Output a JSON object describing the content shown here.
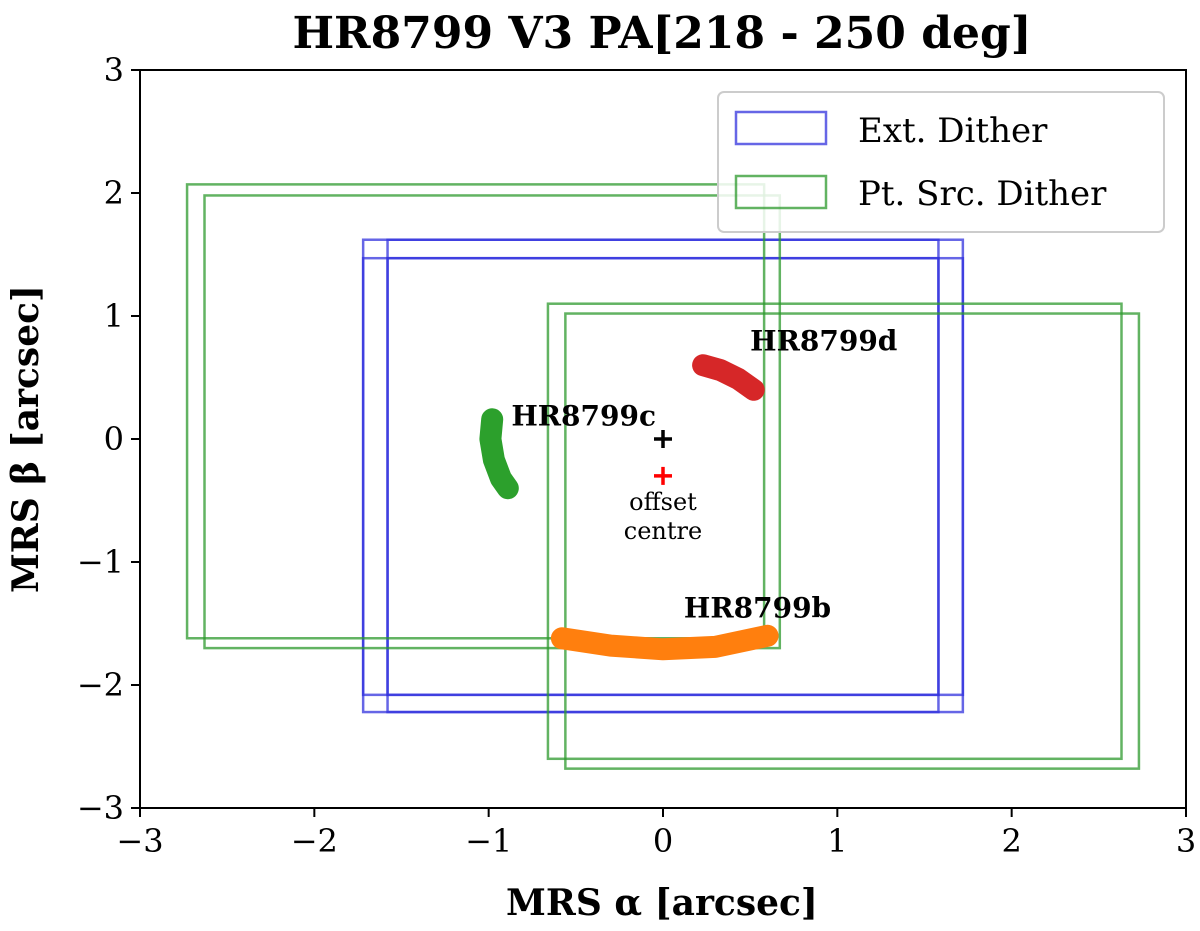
{
  "chart_data": {
    "type": "line",
    "title": "HR8799 V3 PA[218 - 250 deg]",
    "xlabel": "MRS α [arcsec]",
    "ylabel": "MRS β [arcsec]",
    "xlim": [
      -3,
      3
    ],
    "ylim": [
      -3,
      3
    ],
    "xticks": [
      -3,
      -2,
      -1,
      0,
      1,
      2,
      3
    ],
    "yticks": [
      -3,
      -2,
      -1,
      0,
      1,
      2,
      3
    ],
    "tick_labels_x": [
      "−3",
      "−2",
      "−1",
      "0",
      "1",
      "2",
      "3"
    ],
    "tick_labels_y": [
      "−3",
      "−2",
      "−1",
      "0",
      "1",
      "2",
      "3"
    ],
    "legend": {
      "position": "top-right",
      "entries": [
        {
          "label": "Ext. Dither",
          "color": "#3333dd"
        },
        {
          "label": "Pt. Src. Dither",
          "color": "#2e9a2e"
        }
      ]
    },
    "rectangles": [
      {
        "series": "Ext. Dither",
        "x0": -1.72,
        "x1": 1.58,
        "y0": -2.22,
        "y1": 1.47
      },
      {
        "series": "Ext. Dither",
        "x0": -1.72,
        "x1": 1.58,
        "y0": -2.08,
        "y1": 1.62
      },
      {
        "series": "Ext. Dither",
        "x0": -1.58,
        "x1": 1.72,
        "y0": -2.22,
        "y1": 1.47
      },
      {
        "series": "Ext. Dither",
        "x0": -1.58,
        "x1": 1.72,
        "y0": -2.08,
        "y1": 1.62
      },
      {
        "series": "Pt. Src. Dither",
        "x0": -2.73,
        "x1": 0.58,
        "y0": -1.62,
        "y1": 2.07
      },
      {
        "series": "Pt. Src. Dither",
        "x0": -2.63,
        "x1": 0.67,
        "y0": -1.7,
        "y1": 1.98
      },
      {
        "series": "Pt. Src. Dither",
        "x0": -0.66,
        "x1": 2.63,
        "y0": -2.6,
        "y1": 1.1
      },
      {
        "series": "Pt. Src. Dither",
        "x0": -0.56,
        "x1": 2.73,
        "y0": -2.68,
        "y1": 1.02
      }
    ],
    "planets": [
      {
        "name": "HR8799b",
        "color": "#ff7f0e",
        "label_x": 0.12,
        "label_y": -1.45,
        "path": [
          [
            -0.58,
            -1.62
          ],
          [
            -0.3,
            -1.68
          ],
          [
            0.0,
            -1.71
          ],
          [
            0.3,
            -1.69
          ],
          [
            0.6,
            -1.6
          ]
        ]
      },
      {
        "name": "HR8799c",
        "color": "#2ca02c",
        "label_x": -0.87,
        "label_y": 0.11,
        "path": [
          [
            -0.98,
            0.16
          ],
          [
            -0.99,
            0.0
          ],
          [
            -0.97,
            -0.17
          ],
          [
            -0.93,
            -0.32
          ],
          [
            -0.89,
            -0.4
          ]
        ]
      },
      {
        "name": "HR8799d",
        "color": "#d62728",
        "label_x": 0.5,
        "label_y": 0.72,
        "path": [
          [
            0.23,
            0.6
          ],
          [
            0.33,
            0.56
          ],
          [
            0.43,
            0.49
          ],
          [
            0.52,
            0.4
          ]
        ]
      }
    ],
    "markers": [
      {
        "name": "centre",
        "x": 0.0,
        "y": 0.0,
        "color": "#000000"
      },
      {
        "name": "offset-centre",
        "x": 0.0,
        "y": -0.3,
        "color": "#ff0000"
      }
    ],
    "annotations": {
      "offset_line1": "offset",
      "offset_line2": "centre"
    }
  }
}
